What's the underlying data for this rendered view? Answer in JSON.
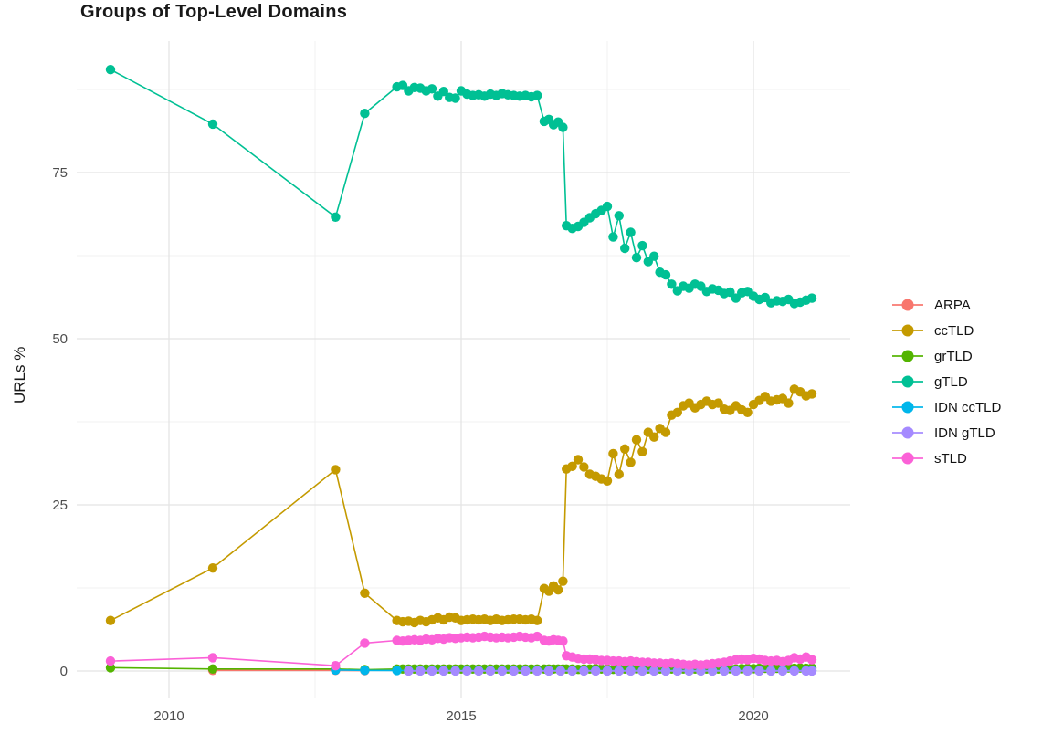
{
  "title": "Groups of Top-Level Domains",
  "ylabel": "URLs %",
  "legend": [
    {
      "label": "ARPA",
      "color": "#F8766D"
    },
    {
      "label": "ccTLD",
      "color": "#C49A00"
    },
    {
      "label": "grTLD",
      "color": "#53B400"
    },
    {
      "label": "gTLD",
      "color": "#00C094"
    },
    {
      "label": "IDN ccTLD",
      "color": "#00B6EB"
    },
    {
      "label": "IDN gTLD",
      "color": "#A58AFF"
    },
    {
      "label": "sTLD",
      "color": "#FB61D7"
    }
  ],
  "colors": {
    "background": "#FFFFFF",
    "grid_major": "#E4E4E4",
    "grid_minor": "#F0F0F0",
    "tick_text": "#4d4d4d",
    "title_text": "#181818"
  },
  "chart_data": {
    "type": "line",
    "title": "Groups of Top-Level Domains",
    "xlabel": "",
    "ylabel": "URLs %",
    "y_unit": "percent of URLs",
    "x_unit": "year (decimal)",
    "xlim": [
      2008.4,
      2021.6
    ],
    "ylim": [
      -4,
      95
    ],
    "grid": true,
    "legend_position": "right",
    "marker": "circle",
    "x_ticks": {
      "values": [
        2010,
        2015,
        2020
      ],
      "labels": [
        "2010",
        "2015",
        "2020"
      ],
      "minor": [
        2012.5,
        2017.5
      ]
    },
    "y_ticks": {
      "values": [
        0,
        25,
        50,
        75
      ],
      "labels": [
        "0",
        "25",
        "50",
        "75"
      ],
      "minor": [
        12.5,
        37.5,
        62.5,
        87.5
      ]
    },
    "series": [
      {
        "name": "ARPA",
        "color": "#F8766D",
        "runs": [
          {
            "pts": [
              [
                2010.75,
                0.1
              ],
              [
                2012.85,
                0.1
              ],
              [
                2013.35,
                0.05
              ]
            ]
          }
        ]
      },
      {
        "name": "ccTLD",
        "color": "#C49A00",
        "runs": [
          {
            "pts": [
              [
                2009.0,
                7.6
              ],
              [
                2010.75,
                15.5
              ],
              [
                2012.85,
                30.3
              ],
              [
                2013.35,
                11.7
              ]
            ]
          },
          {
            "x0": 2013.9,
            "dx": 0.1,
            "v": [
              7.6,
              7.4,
              7.5,
              7.3,
              7.6,
              7.4,
              7.7,
              8.0,
              7.7,
              8.1,
              8.0,
              7.6,
              7.7,
              7.8,
              7.7,
              7.8,
              7.6,
              7.8,
              7.6,
              7.7,
              7.8,
              7.8,
              7.7,
              7.8,
              7.6
            ]
          },
          {
            "x0": 2016.42,
            "dx": 0.08,
            "v": [
              12.4,
              12.0,
              12.8,
              12.2,
              13.5
            ]
          },
          {
            "x0": 2016.8,
            "dx": 0.1,
            "v": [
              30.4,
              30.8,
              31.8,
              30.7,
              29.6,
              29.3,
              28.9,
              28.6,
              32.7,
              29.6,
              33.4,
              31.4,
              34.8,
              33.0,
              35.9,
              35.2,
              36.5,
              35.9,
              38.5,
              38.9,
              39.9,
              40.3,
              39.6,
              40.1,
              40.6,
              40.1,
              40.3,
              39.4,
              39.2,
              39.9,
              39.3,
              38.9,
              40.1,
              40.7,
              41.3,
              40.6,
              40.8,
              41.0,
              40.3,
              42.4,
              42.0,
              41.4,
              41.7
            ]
          }
        ]
      },
      {
        "name": "grTLD",
        "color": "#53B400",
        "runs": [
          {
            "pts": [
              [
                2009.0,
                0.5
              ],
              [
                2010.75,
                0.3
              ],
              [
                2012.85,
                0.3
              ],
              [
                2013.35,
                0.2
              ]
            ]
          },
          {
            "x0": 2013.9,
            "dx": 0.1,
            "n": 25,
            "c": 0.3
          },
          {
            "x0": 2016.42,
            "dx": 0.08,
            "n": 5,
            "c": 0.3
          },
          {
            "x0": 2016.8,
            "dx": 0.1,
            "v": [
              0.3,
              0.3,
              0.25,
              0.3,
              0.3,
              0.35,
              0.3,
              0.3,
              0.25,
              0.3,
              0.3,
              0.3,
              0.35,
              0.3,
              0.3,
              0.25,
              0.3,
              0.3,
              0.3,
              0.35,
              0.3,
              0.3,
              0.3,
              0.35,
              0.3,
              0.35,
              0.3,
              0.35,
              0.35,
              0.3,
              0.35,
              0.4,
              0.35,
              0.4,
              0.4,
              0.35,
              0.4,
              0.4,
              0.45,
              0.4,
              0.45,
              0.4,
              0.45
            ]
          }
        ]
      },
      {
        "name": "gTLD",
        "color": "#00C094",
        "runs": [
          {
            "pts": [
              [
                2009.0,
                90.5
              ],
              [
                2010.75,
                82.3
              ],
              [
                2012.85,
                68.3
              ],
              [
                2013.35,
                83.9
              ]
            ]
          },
          {
            "x0": 2013.9,
            "dx": 0.1,
            "v": [
              87.9,
              88.1,
              87.3,
              87.8,
              87.7,
              87.3,
              87.6,
              86.5,
              87.2,
              86.3,
              86.2,
              87.3,
              86.8,
              86.6,
              86.7,
              86.5,
              86.8,
              86.6,
              86.9,
              86.7,
              86.6,
              86.5,
              86.6,
              86.4,
              86.6
            ]
          },
          {
            "x0": 2016.42,
            "dx": 0.08,
            "v": [
              82.7,
              83.0,
              82.2,
              82.6,
              81.8
            ]
          },
          {
            "x0": 2016.8,
            "dx": 0.1,
            "v": [
              67.0,
              66.6,
              66.9,
              67.5,
              68.2,
              68.8,
              69.3,
              69.9,
              65.3,
              68.5,
              63.6,
              66.0,
              62.2,
              64.0,
              61.6,
              62.4,
              60.0,
              59.6,
              58.2,
              57.2,
              57.9,
              57.6,
              58.2,
              57.9,
              57.1,
              57.5,
              57.3,
              56.8,
              57.0,
              56.1,
              56.9,
              57.1,
              56.4,
              55.9,
              56.2,
              55.4,
              55.7,
              55.6,
              55.9,
              55.3,
              55.5,
              55.8,
              56.1
            ]
          }
        ]
      },
      {
        "name": "IDN ccTLD",
        "color": "#00B6EB",
        "runs": [
          {
            "pts": [
              [
                2012.85,
                0.15
              ],
              [
                2013.35,
                0.1
              ]
            ]
          },
          {
            "x0": 2013.9,
            "dx": 0.2,
            "n": 36,
            "c": 0.08
          },
          {
            "pts": [
              [
                2021.0,
                0.08
              ]
            ]
          }
        ]
      },
      {
        "name": "IDN gTLD",
        "color": "#A58AFF",
        "runs": [
          {
            "x0": 2014.1,
            "dx": 0.2,
            "n": 35,
            "c": 0.02
          },
          {
            "pts": [
              [
                2021.0,
                0.02
              ]
            ]
          }
        ]
      },
      {
        "name": "sTLD",
        "color": "#FB61D7",
        "runs": [
          {
            "pts": [
              [
                2009.0,
                1.5
              ],
              [
                2010.75,
                2.0
              ],
              [
                2012.85,
                0.8
              ],
              [
                2013.35,
                4.2
              ]
            ]
          },
          {
            "x0": 2013.9,
            "dx": 0.1,
            "v": [
              4.6,
              4.5,
              4.6,
              4.7,
              4.6,
              4.8,
              4.7,
              4.9,
              4.8,
              5.0,
              4.9,
              5.0,
              5.1,
              5.0,
              5.1,
              5.2,
              5.1,
              5.0,
              5.1,
              5.0,
              5.1,
              5.2,
              5.1,
              5.0,
              5.2
            ]
          },
          {
            "x0": 2016.42,
            "dx": 0.08,
            "v": [
              4.6,
              4.5,
              4.7,
              4.6,
              4.5
            ]
          },
          {
            "x0": 2016.8,
            "dx": 0.1,
            "v": [
              2.3,
              2.1,
              1.9,
              1.8,
              1.8,
              1.7,
              1.6,
              1.6,
              1.5,
              1.5,
              1.4,
              1.5,
              1.4,
              1.3,
              1.3,
              1.2,
              1.2,
              1.1,
              1.2,
              1.1,
              1.0,
              0.9,
              1.0,
              0.9,
              1.0,
              1.1,
              1.2,
              1.3,
              1.5,
              1.7,
              1.8,
              1.7,
              1.9,
              1.8,
              1.6,
              1.5,
              1.6,
              1.4,
              1.6,
              2.0,
              1.8,
              2.1,
              1.7
            ]
          }
        ]
      }
    ]
  }
}
